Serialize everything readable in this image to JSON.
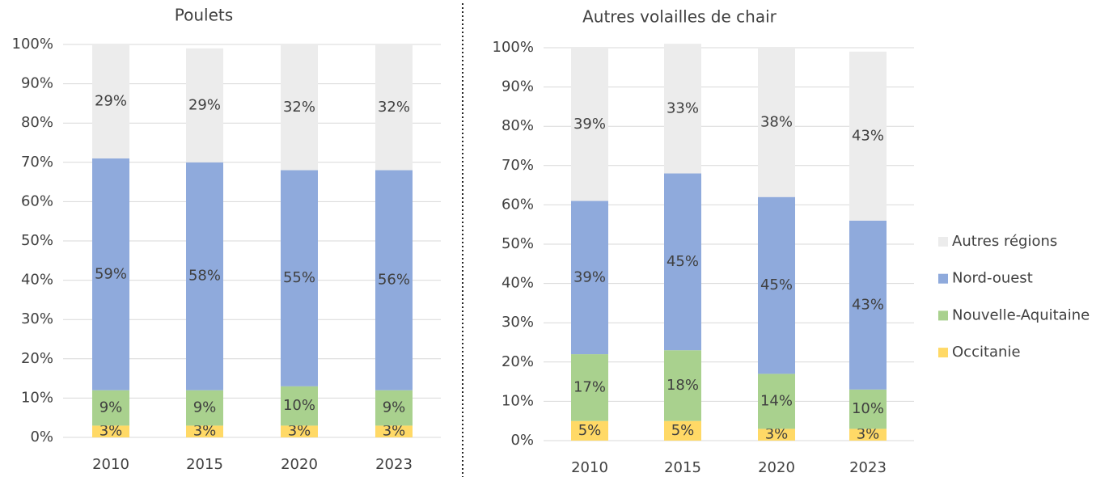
{
  "chart_data": [
    {
      "type": "stacked-bar",
      "title": "Poulets",
      "categories": [
        "2010",
        "2015",
        "2020",
        "2023"
      ],
      "ylim": [
        0,
        100
      ],
      "yticks": [
        {
          "value": 0,
          "label": "0%"
        },
        {
          "value": 10,
          "label": "10%"
        },
        {
          "value": 20,
          "label": "20%"
        },
        {
          "value": 30,
          "label": "30%"
        },
        {
          "value": 40,
          "label": "40%"
        },
        {
          "value": 50,
          "label": "50%"
        },
        {
          "value": 60,
          "label": "60%"
        },
        {
          "value": 70,
          "label": "70%"
        },
        {
          "value": 80,
          "label": "80%"
        },
        {
          "value": 90,
          "label": "90%"
        },
        {
          "value": 100,
          "label": "100%"
        }
      ],
      "grid": true,
      "series": [
        {
          "color": "#ffd966",
          "values": [
            3,
            3,
            3,
            3
          ],
          "value_labels": [
            "3%",
            "3%",
            "3%",
            "3%"
          ]
        },
        {
          "color": "#a9d18e",
          "values": [
            9,
            9,
            10,
            9
          ],
          "value_labels": [
            "9%",
            "9%",
            "10%",
            "9%"
          ]
        },
        {
          "color": "#8faadc",
          "values": [
            59,
            58,
            55,
            56
          ],
          "value_labels": [
            "59%",
            "58%",
            "55%",
            "56%"
          ]
        },
        {
          "color": "#ececec",
          "values": [
            29,
            29,
            32,
            32
          ],
          "value_labels": [
            "29%",
            "29%",
            "32%",
            "32%"
          ]
        }
      ]
    },
    {
      "type": "stacked-bar",
      "title": "Autres volailles de chair",
      "categories": [
        "2010",
        "2015",
        "2020",
        "2023"
      ],
      "ylim": [
        0,
        100
      ],
      "yticks": [
        {
          "value": 0,
          "label": "0%"
        },
        {
          "value": 10,
          "label": "10%"
        },
        {
          "value": 20,
          "label": "20%"
        },
        {
          "value": 30,
          "label": "30%"
        },
        {
          "value": 40,
          "label": "40%"
        },
        {
          "value": 50,
          "label": "50%"
        },
        {
          "value": 60,
          "label": "60%"
        },
        {
          "value": 70,
          "label": "70%"
        },
        {
          "value": 80,
          "label": "80%"
        },
        {
          "value": 90,
          "label": "90%"
        },
        {
          "value": 100,
          "label": "100%"
        }
      ],
      "grid": true,
      "legend": "right",
      "series": [
        {
          "name": "Occitanie",
          "color": "#ffd966",
          "values": [
            5,
            5,
            3,
            3
          ],
          "value_labels": [
            "5%",
            "5%",
            "3%",
            "3%"
          ]
        },
        {
          "name": "Nouvelle-Aquitaine",
          "color": "#a9d18e",
          "values": [
            17,
            18,
            14,
            10
          ],
          "value_labels": [
            "17%",
            "18%",
            "14%",
            "10%"
          ]
        },
        {
          "name": "Nord-ouest",
          "color": "#8faadc",
          "values": [
            39,
            45,
            45,
            43
          ],
          "value_labels": [
            "39%",
            "45%",
            "45%",
            "43%"
          ]
        },
        {
          "name": "Autres régions",
          "color": "#ececec",
          "values": [
            39,
            33,
            38,
            43
          ],
          "value_labels": [
            "39%",
            "33%",
            "38%",
            "43%"
          ]
        }
      ]
    }
  ]
}
